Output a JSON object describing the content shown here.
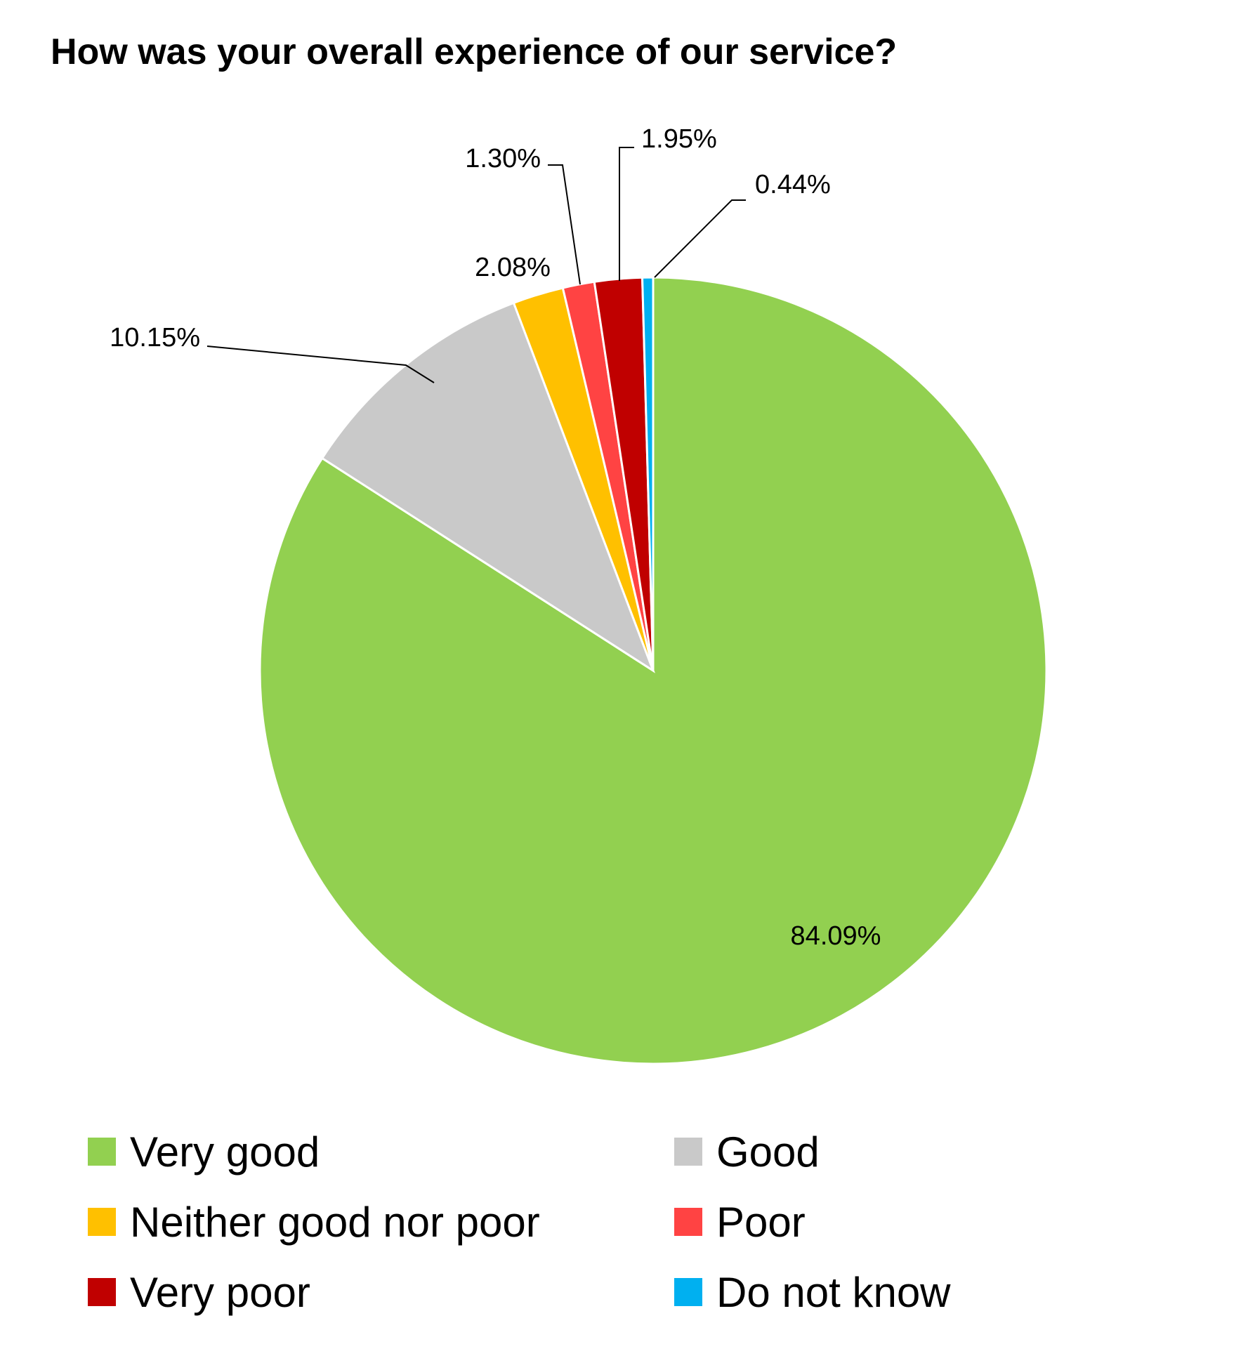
{
  "chart_data": {
    "type": "pie",
    "title": "How was your overall experience of our service?",
    "slices": [
      {
        "name": "Very good",
        "value": 84.09,
        "label": "84.09%",
        "color": "#92D050"
      },
      {
        "name": "Good",
        "value": 10.15,
        "label": "10.15%",
        "color": "#C9C9C9"
      },
      {
        "name": "Neither good nor poor",
        "value": 2.08,
        "label": "2.08%",
        "color": "#FFC000"
      },
      {
        "name": "Poor",
        "value": 1.3,
        "label": "1.30%",
        "color": "#FF4343"
      },
      {
        "name": "Very poor",
        "value": 1.95,
        "label": "1.95%",
        "color": "#C00000"
      },
      {
        "name": "Do not know",
        "value": 0.44,
        "label": "0.44%",
        "color": "#00B0F0"
      }
    ],
    "start_angle_deg": 0,
    "direction": "clockwise",
    "legend_position": "bottom"
  }
}
